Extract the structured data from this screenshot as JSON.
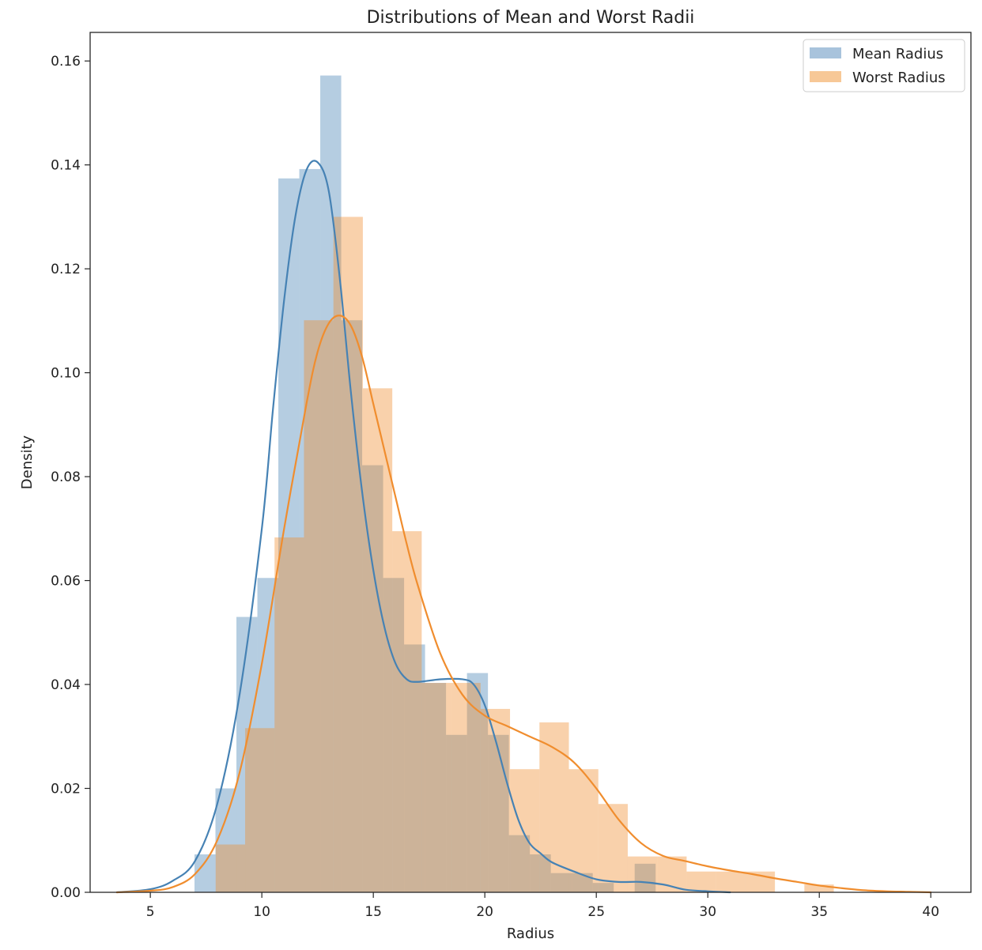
{
  "chart_data": {
    "type": "histogram",
    "title": "Distributions of Mean and Worst Radii",
    "xlabel": "Radius",
    "ylabel": "Density",
    "xlim": [
      2.3,
      41.8
    ],
    "ylim": [
      0,
      0.1655
    ],
    "xticks": [
      5,
      10,
      15,
      20,
      25,
      30,
      35,
      40
    ],
    "yticks": [
      0.0,
      0.02,
      0.04,
      0.06,
      0.08,
      0.1,
      0.12,
      0.14,
      0.16
    ],
    "grid": false,
    "legend_position": "top-right",
    "series": [
      {
        "name": "Mean Radius",
        "color": "#4682b4",
        "bar_color": "#a8c3dc",
        "bins": [
          {
            "x0": 6.98,
            "x1": 7.92,
            "density": 0.0073
          },
          {
            "x0": 7.92,
            "x1": 8.86,
            "density": 0.02
          },
          {
            "x0": 8.86,
            "x1": 9.8,
            "density": 0.053
          },
          {
            "x0": 9.8,
            "x1": 10.74,
            "density": 0.0605
          },
          {
            "x0": 10.74,
            "x1": 11.68,
            "density": 0.1374
          },
          {
            "x0": 11.68,
            "x1": 12.62,
            "density": 0.1392
          },
          {
            "x0": 12.62,
            "x1": 13.56,
            "density": 0.1572
          },
          {
            "x0": 13.56,
            "x1": 14.5,
            "density": 0.1101
          },
          {
            "x0": 14.5,
            "x1": 15.44,
            "density": 0.0822
          },
          {
            "x0": 15.44,
            "x1": 16.38,
            "density": 0.0605
          },
          {
            "x0": 16.38,
            "x1": 17.32,
            "density": 0.0477
          },
          {
            "x0": 17.32,
            "x1": 18.26,
            "density": 0.0403
          },
          {
            "x0": 18.26,
            "x1": 19.2,
            "density": 0.0303
          },
          {
            "x0": 19.2,
            "x1": 20.14,
            "density": 0.0422
          },
          {
            "x0": 20.14,
            "x1": 21.08,
            "density": 0.0303
          },
          {
            "x0": 21.08,
            "x1": 22.02,
            "density": 0.011
          },
          {
            "x0": 22.02,
            "x1": 22.96,
            "density": 0.0073
          },
          {
            "x0": 22.96,
            "x1": 23.9,
            "density": 0.0037
          },
          {
            "x0": 23.9,
            "x1": 24.84,
            "density": 0.0037
          },
          {
            "x0": 24.84,
            "x1": 25.78,
            "density": 0.0018
          },
          {
            "x0": 25.78,
            "x1": 26.72,
            "density": 0.0
          },
          {
            "x0": 26.72,
            "x1": 27.66,
            "density": 0.0055
          },
          {
            "x0": 27.66,
            "x1": 28.11,
            "density": 0.0
          }
        ],
        "kde": {
          "x": [
            3.5,
            5,
            6,
            7,
            8,
            9,
            10,
            10.5,
            11,
            11.5,
            12,
            12.5,
            13,
            13.5,
            14,
            14.5,
            15,
            15.5,
            16,
            16.5,
            17,
            18,
            19,
            19.5,
            20,
            20.5,
            21,
            21.5,
            22,
            22.5,
            23,
            24,
            25,
            26,
            27,
            28,
            29,
            30,
            31
          ],
          "y": [
            0.0,
            0.0006,
            0.0022,
            0.006,
            0.017,
            0.038,
            0.07,
            0.093,
            0.114,
            0.13,
            0.139,
            0.1405,
            0.135,
            0.118,
            0.096,
            0.077,
            0.062,
            0.051,
            0.044,
            0.041,
            0.0405,
            0.041,
            0.041,
            0.04,
            0.036,
            0.029,
            0.021,
            0.014,
            0.0095,
            0.0075,
            0.0058,
            0.004,
            0.0025,
            0.002,
            0.002,
            0.0015,
            0.0005,
            0.0002,
            0.0
          ]
        }
      },
      {
        "name": "Worst Radius",
        "color": "#f08d2e",
        "bar_color": "#f7c897",
        "bins": [
          {
            "x0": 7.93,
            "x1": 9.25,
            "density": 0.0092
          },
          {
            "x0": 9.25,
            "x1": 10.57,
            "density": 0.0316
          },
          {
            "x0": 10.57,
            "x1": 11.89,
            "density": 0.0683
          },
          {
            "x0": 11.89,
            "x1": 13.21,
            "density": 0.1101
          },
          {
            "x0": 13.21,
            "x1": 14.53,
            "density": 0.13
          },
          {
            "x0": 14.53,
            "x1": 15.85,
            "density": 0.097
          },
          {
            "x0": 15.85,
            "x1": 17.17,
            "density": 0.0695
          },
          {
            "x0": 17.17,
            "x1": 18.49,
            "density": 0.0403
          },
          {
            "x0": 18.49,
            "x1": 19.81,
            "density": 0.0403
          },
          {
            "x0": 19.81,
            "x1": 21.13,
            "density": 0.0353
          },
          {
            "x0": 21.13,
            "x1": 22.45,
            "density": 0.0237
          },
          {
            "x0": 22.45,
            "x1": 23.77,
            "density": 0.0327
          },
          {
            "x0": 23.77,
            "x1": 25.09,
            "density": 0.0237
          },
          {
            "x0": 25.09,
            "x1": 26.41,
            "density": 0.017
          },
          {
            "x0": 26.41,
            "x1": 27.73,
            "density": 0.0069
          },
          {
            "x0": 27.73,
            "x1": 29.05,
            "density": 0.0069
          },
          {
            "x0": 29.05,
            "x1": 30.37,
            "density": 0.004
          },
          {
            "x0": 30.37,
            "x1": 31.69,
            "density": 0.004
          },
          {
            "x0": 31.69,
            "x1": 33.01,
            "density": 0.004
          },
          {
            "x0": 33.01,
            "x1": 34.33,
            "density": 0.0
          },
          {
            "x0": 34.33,
            "x1": 35.65,
            "density": 0.0015
          },
          {
            "x0": 35.65,
            "x1": 36.04,
            "density": 0.0
          }
        ],
        "kde": {
          "x": [
            3.5,
            5,
            6,
            7,
            8,
            9,
            10,
            11,
            12,
            12.5,
            13,
            13.5,
            14,
            14.5,
            15,
            15.5,
            16,
            16.5,
            17,
            18,
            19,
            20,
            21,
            22,
            23,
            24,
            25,
            26,
            27,
            28,
            29,
            30,
            31,
            32,
            33,
            34,
            35,
            36,
            37,
            38,
            39,
            40
          ],
          "y": [
            0.0,
            0.0003,
            0.001,
            0.0035,
            0.01,
            0.023,
            0.044,
            0.07,
            0.094,
            0.104,
            0.1095,
            0.111,
            0.109,
            0.103,
            0.094,
            0.085,
            0.076,
            0.067,
            0.059,
            0.046,
            0.038,
            0.034,
            0.032,
            0.03,
            0.028,
            0.025,
            0.02,
            0.014,
            0.0095,
            0.007,
            0.006,
            0.005,
            0.0042,
            0.0035,
            0.0027,
            0.002,
            0.0013,
            0.0008,
            0.0004,
            0.0002,
            0.0001,
            0.0
          ]
        }
      }
    ]
  }
}
